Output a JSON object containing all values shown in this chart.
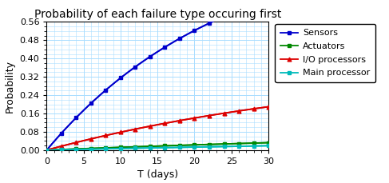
{
  "title": "Probability of each failure type occuring first",
  "xlabel": "T (days)",
  "ylabel": "Probability",
  "xlim": [
    0,
    30
  ],
  "ylim": [
    0,
    0.56
  ],
  "yticks": [
    0.0,
    0.08,
    0.16,
    0.24,
    0.32,
    0.4,
    0.48,
    0.56
  ],
  "xticks": [
    0,
    5,
    10,
    15,
    20,
    25,
    30
  ],
  "marker_every": 2,
  "series": [
    {
      "label": "Sensors",
      "color": "#0000cc",
      "marker": "s",
      "lam": 0.042,
      "scale": 0.92
    },
    {
      "label": "Actuators",
      "color": "#008800",
      "marker": "s",
      "lam": 0.011,
      "scale": 0.115
    },
    {
      "label": "I/O processors",
      "color": "#dd0000",
      "marker": "^",
      "lam": 0.023,
      "scale": 0.38
    },
    {
      "label": "Main processor",
      "color": "#00bbbb",
      "marker": "s",
      "lam": 0.006,
      "scale": 0.115
    }
  ],
  "grid_color": "#aaddff",
  "background_color": "#ffffff",
  "title_fontsize": 10,
  "label_fontsize": 9,
  "tick_fontsize": 8,
  "legend_fontsize": 8,
  "linewidth": 1.3,
  "markersize": 3.5
}
